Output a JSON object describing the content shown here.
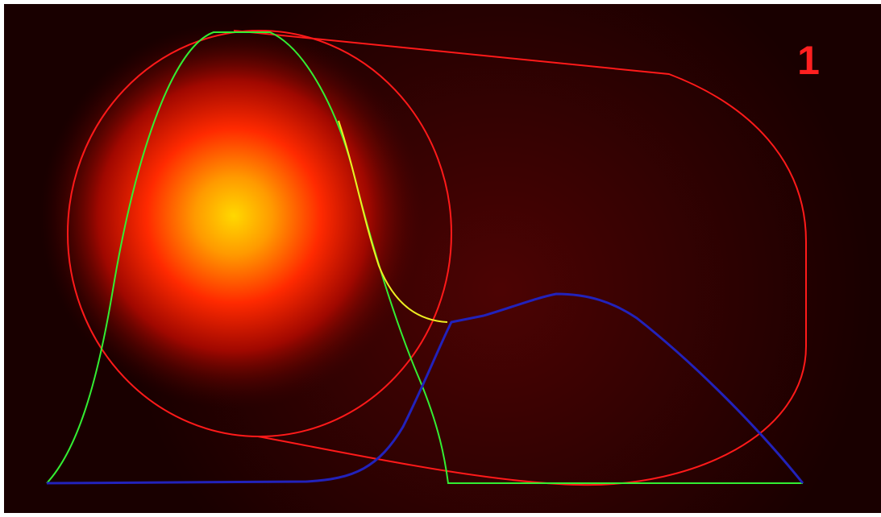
{
  "label": "1"
}
